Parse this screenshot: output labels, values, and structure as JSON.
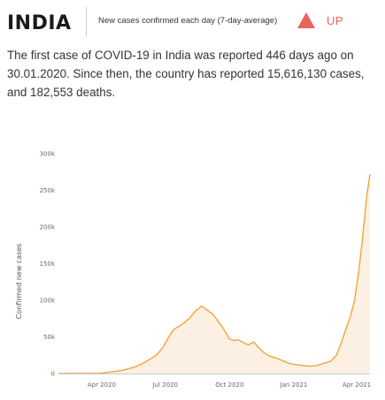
{
  "header": {
    "country": "INDIA",
    "subtitle": "New cases confirmed each day (7-day-average)",
    "trend_label": "UP",
    "trend_icon": "triangle-up-icon",
    "trend_color": "#e9645c"
  },
  "summary": {
    "text": "The first case of COVID-19 in India was reported 446 days ago on 30.01.2020. Since then, the country has reported 15,616,130 cases, and 182,553 deaths."
  },
  "chart_data": {
    "type": "area",
    "ylabel": "Confirmed new cases",
    "ylim": [
      0,
      300000
    ],
    "y_ticks": [
      0,
      50000,
      100000,
      150000,
      200000,
      250000,
      300000
    ],
    "y_tick_labels": [
      "0",
      "50k",
      "100k",
      "150k",
      "200k",
      "250k",
      "300k"
    ],
    "x_tick_labels": [
      "Apr 2020",
      "Jul 2020",
      "Oct 2020",
      "Jan 2021",
      "Apr 2021"
    ],
    "x_tick_days": [
      62,
      153,
      245,
      337,
      427
    ],
    "x_range_days": [
      0,
      446
    ],
    "line_color": "#f0a53b",
    "fill_color": "#fcf0e2",
    "grid": false,
    "x": [
      0,
      30,
      60,
      90,
      110,
      125,
      140,
      150,
      158,
      165,
      172,
      180,
      188,
      195,
      205,
      215,
      222,
      228,
      235,
      240,
      245,
      252,
      258,
      265,
      272,
      280,
      285,
      290,
      295,
      302,
      308,
      315,
      322,
      330,
      340,
      350,
      360,
      370,
      380,
      390,
      398,
      405,
      412,
      418,
      424,
      430,
      436,
      441,
      446
    ],
    "y": [
      0,
      5,
      400,
      4000,
      9000,
      16000,
      25000,
      36000,
      50000,
      60000,
      64000,
      69000,
      76000,
      84000,
      92000,
      85000,
      80000,
      72000,
      63000,
      55000,
      47000,
      45000,
      46000,
      42000,
      39000,
      43000,
      37000,
      32000,
      28000,
      24000,
      22000,
      20000,
      17000,
      14000,
      12000,
      11000,
      10000,
      11000,
      14000,
      17000,
      25000,
      42000,
      62000,
      78000,
      100000,
      140000,
      190000,
      240000,
      272000
    ]
  }
}
